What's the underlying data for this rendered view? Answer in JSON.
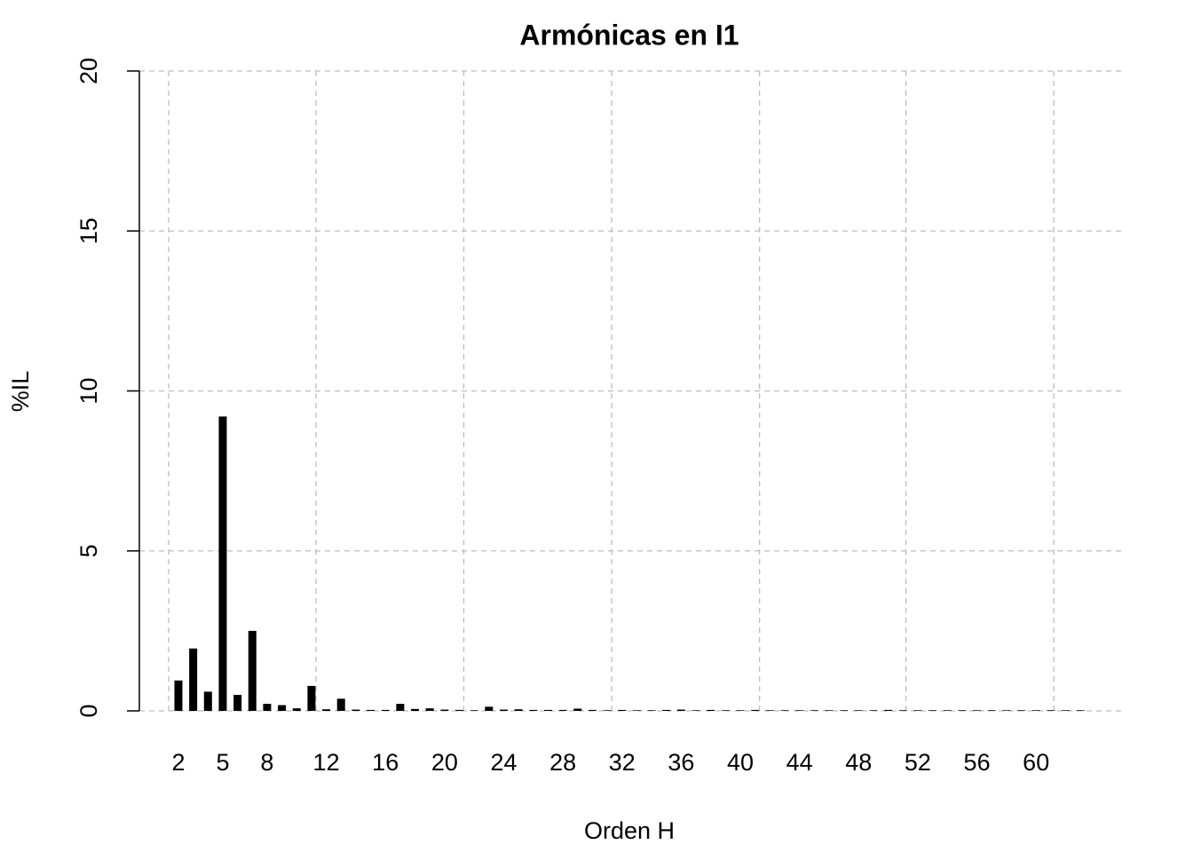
{
  "chart_data": {
    "type": "bar",
    "title": "Armónicas en I1",
    "x_label": "Orden H",
    "y_label": "%IL",
    "x": [
      2,
      3,
      4,
      5,
      6,
      7,
      8,
      9,
      10,
      11,
      12,
      13,
      14,
      15,
      16,
      17,
      18,
      19,
      20,
      21,
      22,
      23,
      24,
      25,
      26,
      27,
      28,
      29,
      30,
      31,
      32,
      33,
      34,
      35,
      36,
      37,
      38,
      39,
      40,
      41,
      42,
      43,
      44,
      45,
      46,
      47,
      48,
      49,
      50,
      51,
      52,
      53,
      54,
      55,
      56,
      57,
      58,
      59,
      60,
      61,
      62,
      63
    ],
    "values": [
      0.95,
      1.95,
      0.6,
      9.2,
      0.5,
      2.5,
      0.22,
      0.18,
      0.08,
      0.78,
      0.05,
      0.38,
      0.04,
      0.03,
      0.03,
      0.22,
      0.06,
      0.08,
      0.04,
      0.03,
      0.02,
      0.13,
      0.04,
      0.05,
      0.03,
      0.03,
      0.03,
      0.07,
      0.03,
      0.02,
      0.03,
      0.02,
      0.02,
      0.03,
      0.04,
      0.02,
      0.03,
      0.02,
      0.02,
      0.03,
      0.02,
      0.02,
      0.02,
      0.02,
      0.02,
      0.02,
      0.02,
      0.02,
      0.03,
      0.02,
      0.02,
      0.02,
      0.02,
      0.02,
      0.02,
      0.02,
      0.02,
      0.02,
      0.02,
      0.02,
      0.02,
      0.02
    ],
    "color": "#000000",
    "xlim": [
      -0.64,
      65.87
    ],
    "xticks": [
      2,
      5,
      8,
      12,
      16,
      20,
      24,
      28,
      32,
      36,
      40,
      44,
      48,
      52,
      56,
      60
    ],
    "x_grid": [
      1.34,
      11.3,
      21.3,
      31.3,
      41.3,
      51.2,
      61.2
    ],
    "ylim": [
      0,
      20
    ],
    "yticks": [
      0,
      5,
      10,
      15,
      20
    ],
    "grid": true
  }
}
